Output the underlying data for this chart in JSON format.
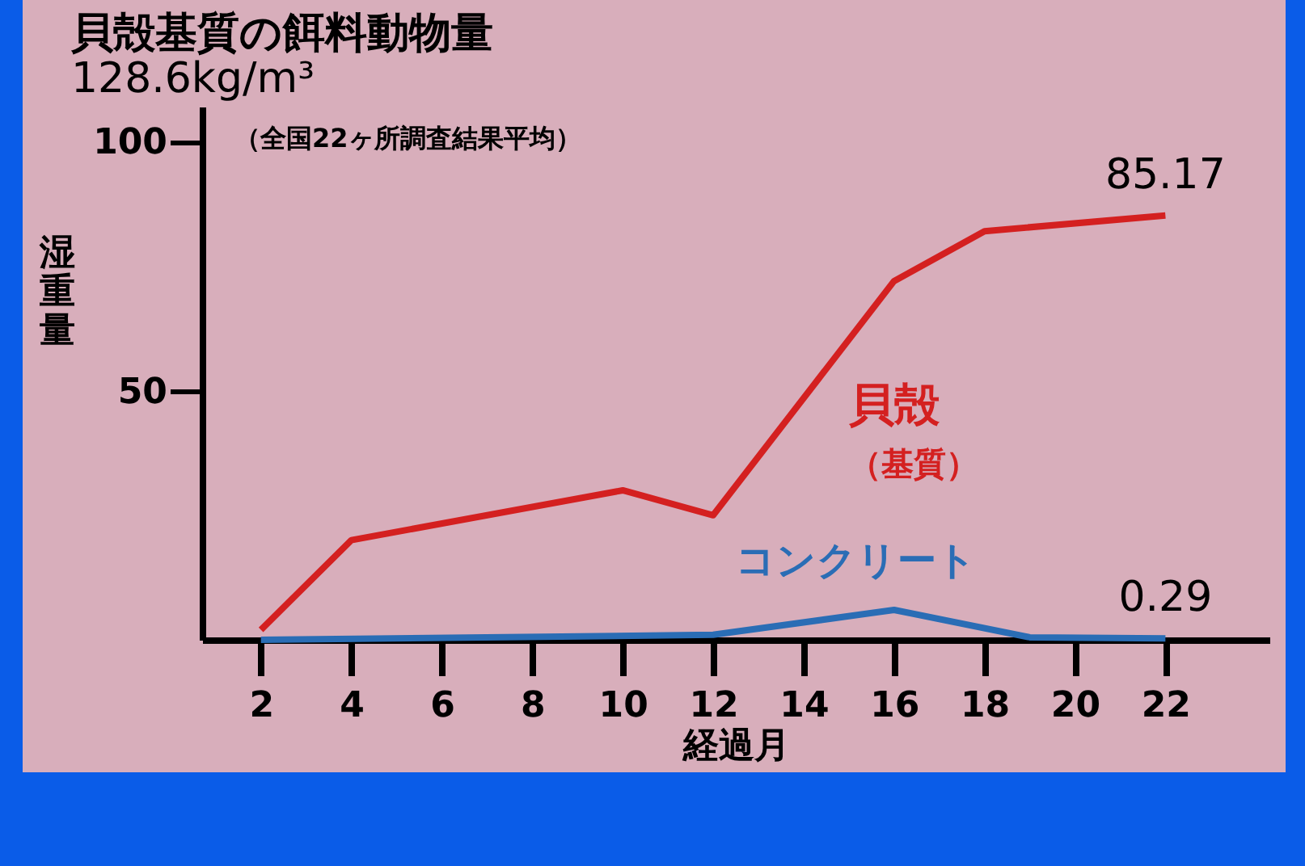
{
  "chart_data": {
    "type": "line",
    "title": "貝殻基質の餌料動物量",
    "subtitle": "128.6kg/m³",
    "xlabel": "経過月",
    "ylabel": "湿重量",
    "xlim": [
      0.7,
      24.3
    ],
    "xticks": [
      2,
      4,
      6,
      8,
      10,
      12,
      14,
      16,
      18,
      20,
      22
    ],
    "ylim": [
      0,
      107
    ],
    "yticks": [
      50,
      100
    ],
    "grid": false,
    "marker": "none",
    "line_style": "solid",
    "series": [
      {
        "name": "貝殻",
        "color": "#d42020",
        "x": [
          2,
          4,
          10,
          12,
          16,
          18,
          22
        ],
        "values": [
          2,
          20,
          30,
          25,
          72,
          82,
          85.17
        ]
      },
      {
        "name": "コンクリート",
        "color": "#2a6db5",
        "x": [
          2,
          12,
          16,
          19,
          22
        ],
        "values": [
          0,
          1,
          6,
          0.5,
          0.29
        ]
      }
    ],
    "annotations": [
      "（全国22ヶ所調査結果平均）",
      "（基質）",
      {
        "text": "85.17",
        "x": 22,
        "y": 85.17
      },
      {
        "text": "0.29",
        "x": 22,
        "y": 0.29
      }
    ]
  }
}
